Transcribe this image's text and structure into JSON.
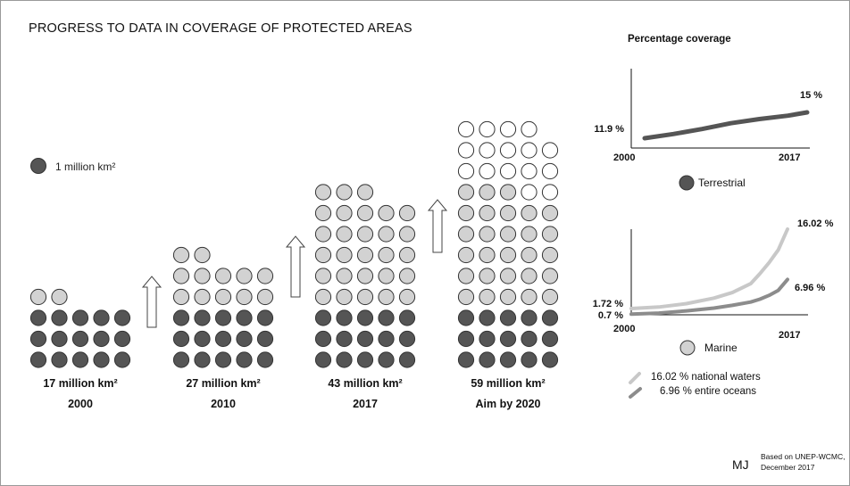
{
  "title": "PROGRESS TO DATA IN COVERAGE OF PROTECTED AREAS",
  "legend": {
    "unit_label": "1 million km²"
  },
  "colors": {
    "dark": "#555555",
    "light": "#d2d2d2",
    "empty": "#ffffff",
    "outline": "#333333",
    "terrestrial_line": "#555555",
    "national_line": "#c8c8c8",
    "entire_line": "#8c8c8c"
  },
  "chart_data": [
    {
      "type": "bar",
      "title": "PROGRESS TO DATA IN COVERAGE OF PROTECTED AREAS",
      "unit": "million km²",
      "categories": [
        "2000",
        "2010",
        "2017",
        "Aim by 2020"
      ],
      "value_labels": [
        "17 million km²",
        "27 million km²",
        "43 million km²",
        "59 million km²"
      ],
      "values": [
        17,
        27,
        43,
        59
      ],
      "series": [
        {
          "key": "dark",
          "values": [
            15,
            15,
            15,
            15
          ]
        },
        {
          "key": "light",
          "values": [
            2,
            12,
            28,
            28
          ]
        },
        {
          "key": "empty",
          "values": [
            0,
            0,
            0,
            16
          ]
        }
      ]
    },
    {
      "type": "line",
      "title": "Percentage coverage",
      "x": [
        2000,
        2017
      ],
      "xticks": [
        "2000",
        "2017"
      ],
      "series": [
        {
          "name": "Terrestrial",
          "x": [
            2000,
            2003,
            2006,
            2009,
            2012,
            2015,
            2017
          ],
          "values": [
            11.9,
            12.4,
            13.0,
            13.7,
            14.2,
            14.6,
            15.0
          ],
          "start_label": "11.9 %",
          "end_label": "15 %"
        }
      ]
    },
    {
      "type": "line",
      "x": [
        2000,
        2017
      ],
      "xticks": [
        "2000",
        "2017"
      ],
      "legend_name": "Marine",
      "series": [
        {
          "name": "16.02 % national waters",
          "x": [
            2000,
            2003,
            2006,
            2009,
            2011,
            2013,
            2014,
            2015,
            2016,
            2017
          ],
          "values": [
            1.72,
            2.0,
            2.6,
            3.6,
            4.6,
            6.2,
            8.0,
            10.0,
            12.3,
            16.02
          ],
          "start_label": "1.72 %",
          "end_label": "16.02 %"
        },
        {
          "name": "6.96 % entire oceans",
          "x": [
            2000,
            2003,
            2006,
            2009,
            2011,
            2013,
            2014,
            2015,
            2016,
            2017
          ],
          "values": [
            0.7,
            0.9,
            1.3,
            1.8,
            2.3,
            2.9,
            3.4,
            4.1,
            5.0,
            6.96
          ],
          "start_label": "0.7 %",
          "end_label": "6.96 %"
        }
      ]
    }
  ],
  "credit": {
    "logo": "MJ",
    "line1": "Based on UNEP-WCMC,",
    "line2": "December 2017"
  }
}
